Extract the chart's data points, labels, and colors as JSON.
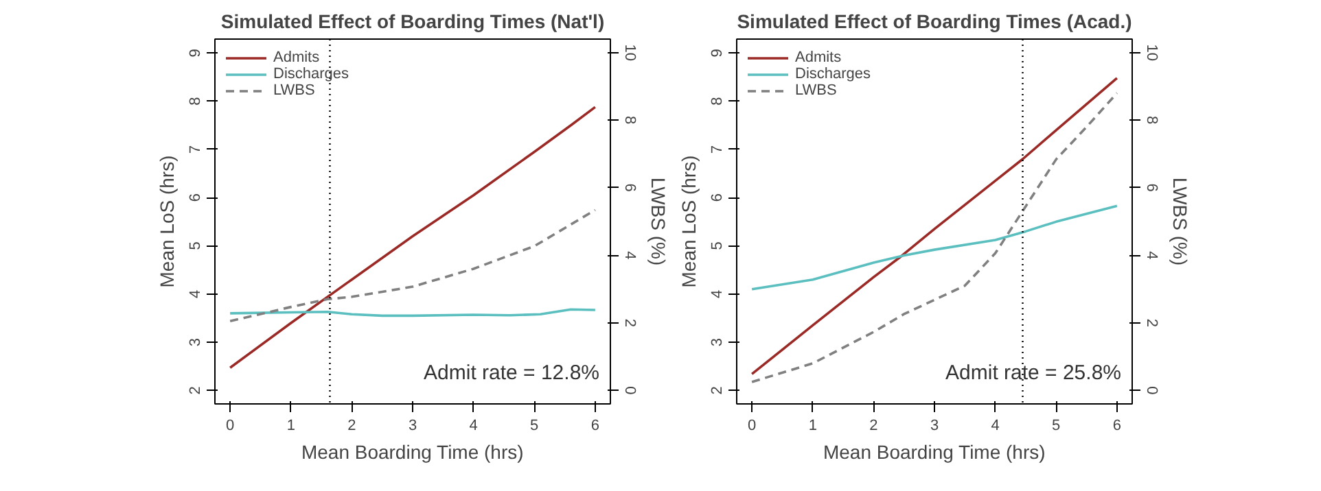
{
  "chart_data": [
    {
      "type": "line",
      "title": "Simulated Effect of Boarding Times (Nat'l)",
      "xlabel": "Mean Boarding Time (hrs)",
      "ylabel": "Mean LoS (hrs)",
      "y2label": "LWBS (%)",
      "xlim": [
        -0.25,
        6.25
      ],
      "ylim": [
        1.72,
        9.29
      ],
      "y2lim": [
        -0.4,
        10.4
      ],
      "xticks": [
        0,
        1,
        2,
        3,
        4,
        5,
        6
      ],
      "yticks": [
        2,
        3,
        4,
        5,
        6,
        7,
        8,
        9
      ],
      "y2ticks": [
        0,
        2,
        4,
        6,
        8,
        10
      ],
      "grid": false,
      "legend": "top left",
      "series": [
        {
          "name": "Admits",
          "color": "#9b2a26",
          "line_style": "solid",
          "x": [
            0,
            1,
            2,
            3,
            4,
            5,
            5.6,
            6
          ],
          "values": [
            2.47,
            3.4,
            4.3,
            5.2,
            6.05,
            6.95,
            7.5,
            7.88
          ]
        },
        {
          "name": "Discharges",
          "color": "#5bbfc0",
          "line_style": "solid",
          "x": [
            0,
            1,
            1.6,
            2,
            2.5,
            3,
            4,
            4.6,
            5.1,
            5.6,
            6
          ],
          "values": [
            3.6,
            3.62,
            3.63,
            3.58,
            3.55,
            3.55,
            3.57,
            3.56,
            3.58,
            3.68,
            3.67
          ]
        },
        {
          "name": "LWBS",
          "color": "#808080",
          "line_style": "dashed",
          "axis": "y2",
          "x": [
            0,
            1,
            1.6,
            2,
            3,
            4,
            5,
            6
          ],
          "values": [
            2.05,
            2.47,
            2.7,
            2.77,
            3.07,
            3.6,
            4.27,
            5.34
          ]
        }
      ],
      "ref_lines": [
        {
          "axis": "x",
          "value": 1.64,
          "line_style": "dotted",
          "color": "#000000"
        }
      ],
      "annotations": [
        "Admit rate = 12.8%"
      ]
    },
    {
      "type": "line",
      "title": "Simulated Effect of Boarding Times (Acad.)",
      "xlabel": "Mean Boarding Time (hrs)",
      "ylabel": "Mean LoS (hrs)",
      "y2label": "LWBS (%)",
      "xlim": [
        -0.25,
        6.25
      ],
      "ylim": [
        1.72,
        9.29
      ],
      "y2lim": [
        -0.4,
        10.4
      ],
      "xticks": [
        0,
        1,
        2,
        3,
        4,
        5,
        6
      ],
      "yticks": [
        2,
        3,
        4,
        5,
        6,
        7,
        8,
        9
      ],
      "y2ticks": [
        0,
        2,
        4,
        6,
        8,
        10
      ],
      "grid": false,
      "legend": "top left",
      "series": [
        {
          "name": "Admits",
          "color": "#9b2a26",
          "line_style": "solid",
          "x": [
            0,
            1,
            2,
            2.45,
            3,
            4,
            4.45,
            5,
            6
          ],
          "values": [
            2.34,
            3.35,
            4.35,
            4.78,
            5.35,
            6.35,
            6.8,
            7.4,
            8.48
          ]
        },
        {
          "name": "Discharges",
          "color": "#5bbfc0",
          "line_style": "solid",
          "x": [
            0,
            1,
            2,
            2.5,
            3,
            4,
            4.5,
            5,
            6
          ],
          "values": [
            4.1,
            4.3,
            4.65,
            4.8,
            4.92,
            5.12,
            5.3,
            5.5,
            5.83
          ]
        },
        {
          "name": "LWBS",
          "color": "#808080",
          "line_style": "dashed",
          "axis": "y2",
          "x": [
            0,
            1,
            2,
            2.5,
            3,
            3.5,
            4,
            4.4,
            5,
            5.5,
            6
          ],
          "values": [
            0.25,
            0.8,
            1.73,
            2.26,
            2.68,
            3.1,
            4.06,
            5.17,
            6.84,
            7.8,
            8.8
          ]
        }
      ],
      "ref_lines": [
        {
          "axis": "x",
          "value": 4.45,
          "line_style": "dotted",
          "color": "#000000"
        }
      ],
      "annotations": [
        "Admit rate = 25.8%"
      ]
    }
  ]
}
